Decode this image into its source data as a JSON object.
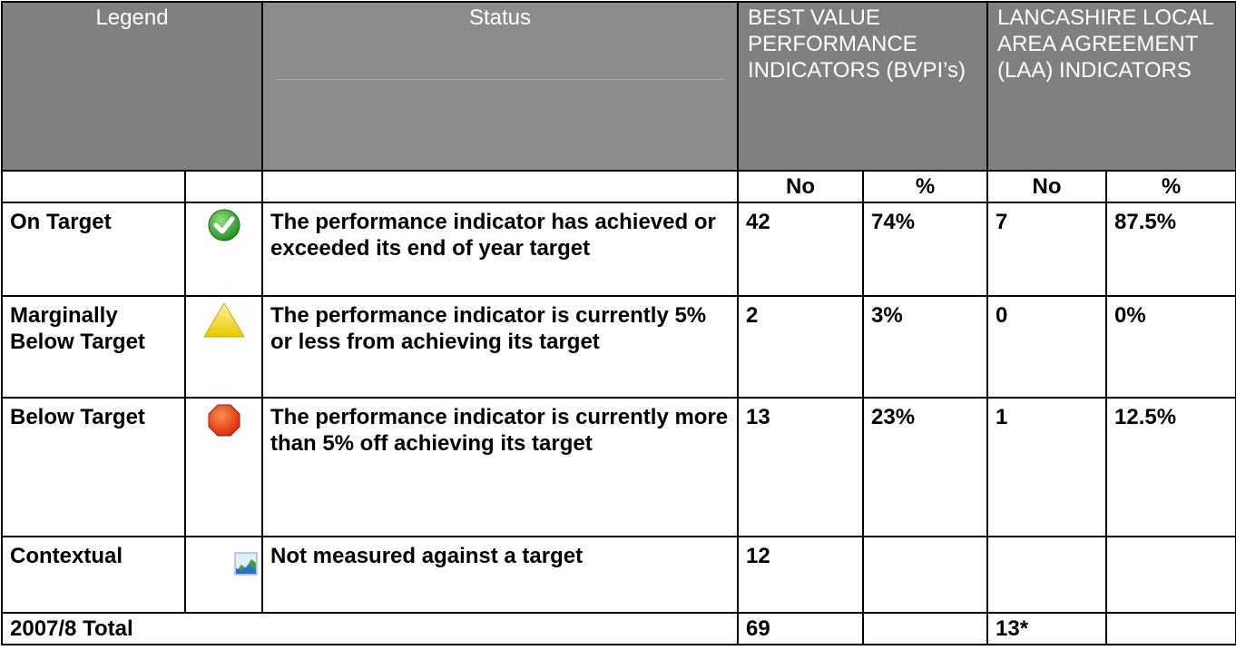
{
  "header": {
    "legend": "Legend",
    "status": "Status",
    "bvpi": "BEST VALUE PERFORMANCE INDICATORS (BVPI’s)",
    "laa": "LANCASHIRE LOCAL AREA AGREEMENT (LAA) INDICATORS"
  },
  "subheader": [
    "No",
    "%",
    "No",
    "%"
  ],
  "rows": [
    {
      "label": "On Target",
      "status": "The performance indicator has achieved or exceeded its end of year target",
      "bvpi_no": 42,
      "bvpi_pct": "74%",
      "laa_no": 7,
      "laa_pct": "87.5%"
    },
    {
      "label": "Marginally Below Target",
      "status": "The performance indicator is currently  5%  or less from achieving its target",
      "bvpi_no": 2,
      "bvpi_pct": "3%",
      "laa_no": 0,
      "laa_pct": "0%"
    },
    {
      "label": "Below Target",
      "status": "The performance indicator is currently more than 5% off achieving its target",
      "bvpi_no": 13,
      "bvpi_pct": "23%",
      "laa_no": 1,
      "laa_pct": "12.5%"
    },
    {
      "label": "Contextual",
      "status": "Not measured against a target",
      "bvpi_no": 12
    }
  ],
  "total": {
    "label": "2007/8 Total",
    "bvpi_no": 69,
    "laa_no": "13*"
  }
}
